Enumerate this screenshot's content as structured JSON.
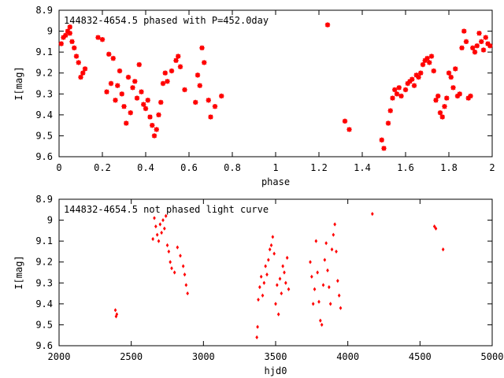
{
  "chart_data": [
    {
      "type": "scatter",
      "title": "144832-4654.5 phased with P=452.0day",
      "xlabel": "phase",
      "ylabel": "I[mag]",
      "xlim": [
        0,
        2
      ],
      "ylim": [
        8.9,
        9.6
      ],
      "y_inverted": true,
      "x_ticks": [
        "0",
        "0.2",
        "0.4",
        "0.6",
        "0.8",
        "1",
        "1.2",
        "1.4",
        "1.6",
        "1.8",
        "2"
      ],
      "y_ticks": [
        "8.9",
        "9",
        "9.1",
        "9.2",
        "9.3",
        "9.4",
        "9.5",
        "9.6"
      ],
      "grid": false,
      "marker": "star",
      "color": "#ff0000",
      "series": [
        {
          "x": [
            0.01,
            0.02,
            0.03,
            0.04,
            0.05,
            0.05,
            0.06,
            0.07,
            0.08,
            0.09,
            0.1,
            0.11,
            0.12,
            0.18,
            0.2,
            0.22,
            0.23,
            0.24,
            0.25,
            0.26,
            0.27,
            0.28,
            0.29,
            0.3,
            0.31,
            0.32,
            0.33,
            0.34,
            0.35,
            0.36,
            0.37,
            0.38,
            0.39,
            0.4,
            0.41,
            0.42,
            0.43,
            0.44,
            0.45,
            0.46,
            0.47,
            0.48,
            0.49,
            0.5,
            0.52,
            0.54,
            0.55,
            0.56,
            0.58,
            0.63,
            0.64,
            0.65,
            0.66,
            0.67,
            0.69,
            0.7,
            0.72,
            0.75,
            1.24,
            1.32,
            1.34,
            1.49,
            1.5,
            1.52,
            1.53,
            1.54,
            1.55,
            1.56,
            1.57,
            1.58,
            1.6,
            1.61,
            1.62,
            1.63,
            1.64,
            1.65,
            1.66,
            1.67,
            1.68,
            1.69,
            1.7,
            1.71,
            1.72,
            1.73,
            1.74,
            1.75,
            1.76,
            1.77,
            1.78,
            1.79,
            1.8,
            1.81,
            1.82,
            1.83,
            1.84,
            1.85,
            1.86,
            1.87,
            1.88,
            1.89,
            1.9,
            1.91,
            1.92,
            1.93,
            1.94,
            1.95,
            1.96,
            1.97,
            1.98,
            1.99
          ],
          "y": [
            9.06,
            9.03,
            9.02,
            9.0,
            8.98,
            9.01,
            9.05,
            9.08,
            9.12,
            9.15,
            9.22,
            9.2,
            9.18,
            9.03,
            9.04,
            9.29,
            9.11,
            9.25,
            9.13,
            9.33,
            9.26,
            9.19,
            9.3,
            9.36,
            9.44,
            9.22,
            9.39,
            9.27,
            9.24,
            9.32,
            9.16,
            9.29,
            9.35,
            9.37,
            9.33,
            9.41,
            9.45,
            9.5,
            9.47,
            9.4,
            9.34,
            9.25,
            9.2,
            9.24,
            9.19,
            9.14,
            9.12,
            9.17,
            9.28,
            9.34,
            9.21,
            9.26,
            9.08,
            9.15,
            9.33,
            9.41,
            9.36,
            9.31,
            8.97,
            9.43,
            9.47,
            9.52,
            9.56,
            9.44,
            9.38,
            9.32,
            9.28,
            9.3,
            9.27,
            9.31,
            9.28,
            9.25,
            9.24,
            9.23,
            9.26,
            9.21,
            9.22,
            9.2,
            9.16,
            9.14,
            9.13,
            9.15,
            9.12,
            9.19,
            9.33,
            9.31,
            9.39,
            9.41,
            9.36,
            9.32,
            9.2,
            9.22,
            9.27,
            9.18,
            9.31,
            9.3,
            9.08,
            9.0,
            9.05,
            9.32,
            9.31,
            9.08,
            9.1,
            9.07,
            9.01,
            9.05,
            9.09,
            9.03,
            9.06,
            9.07
          ]
        }
      ]
    },
    {
      "type": "scatter",
      "title": "144832-4654.5 not phased light curve",
      "xlabel": "hjd0",
      "ylabel": "I[mag]",
      "xlim": [
        2000,
        5000
      ],
      "ylim": [
        8.9,
        9.6
      ],
      "y_inverted": true,
      "x_ticks": [
        "2000",
        "2500",
        "3000",
        "3500",
        "4000",
        "4500",
        "5000"
      ],
      "y_ticks": [
        "8.9",
        "9",
        "9.1",
        "9.2",
        "9.3",
        "9.4",
        "9.5",
        "9.6"
      ],
      "grid": false,
      "marker": "diamond",
      "color": "#ff0000",
      "series": [
        {
          "x": [
            2390,
            2395,
            2400,
            2650,
            2660,
            2670,
            2680,
            2690,
            2700,
            2710,
            2720,
            2730,
            2740,
            2750,
            2760,
            2770,
            2780,
            2800,
            2820,
            2840,
            2860,
            2870,
            2880,
            2890,
            3370,
            3375,
            3380,
            3390,
            3400,
            3410,
            3420,
            3430,
            3440,
            3450,
            3460,
            3470,
            3480,
            3490,
            3500,
            3510,
            3520,
            3530,
            3540,
            3550,
            3560,
            3570,
            3580,
            3590,
            3740,
            3750,
            3760,
            3770,
            3780,
            3790,
            3800,
            3810,
            3820,
            3830,
            3840,
            3850,
            3860,
            3870,
            3880,
            3890,
            3900,
            3910,
            3920,
            3930,
            3940,
            3950,
            4170,
            4600,
            4610,
            4660
          ],
          "y": [
            9.43,
            9.46,
            9.45,
            9.09,
            8.99,
            9.03,
            9.07,
            9.1,
            9.02,
            9.06,
            9.0,
            9.04,
            8.98,
            9.12,
            9.15,
            9.2,
            9.23,
            9.25,
            9.13,
            9.17,
            9.22,
            9.26,
            9.31,
            9.35,
            9.56,
            9.51,
            9.38,
            9.32,
            9.27,
            9.36,
            9.3,
            9.22,
            9.26,
            9.19,
            9.14,
            9.12,
            9.08,
            9.16,
            9.4,
            9.31,
            9.45,
            9.28,
            9.35,
            9.22,
            9.25,
            9.3,
            9.18,
            9.33,
            9.2,
            9.27,
            9.4,
            9.33,
            9.1,
            9.25,
            9.39,
            9.48,
            9.5,
            9.31,
            9.19,
            9.11,
            9.24,
            9.32,
            9.4,
            9.14,
            9.07,
            9.02,
            9.15,
            9.29,
            9.36,
            9.42,
            8.97,
            9.03,
            9.04,
            9.14
          ]
        }
      ]
    }
  ]
}
